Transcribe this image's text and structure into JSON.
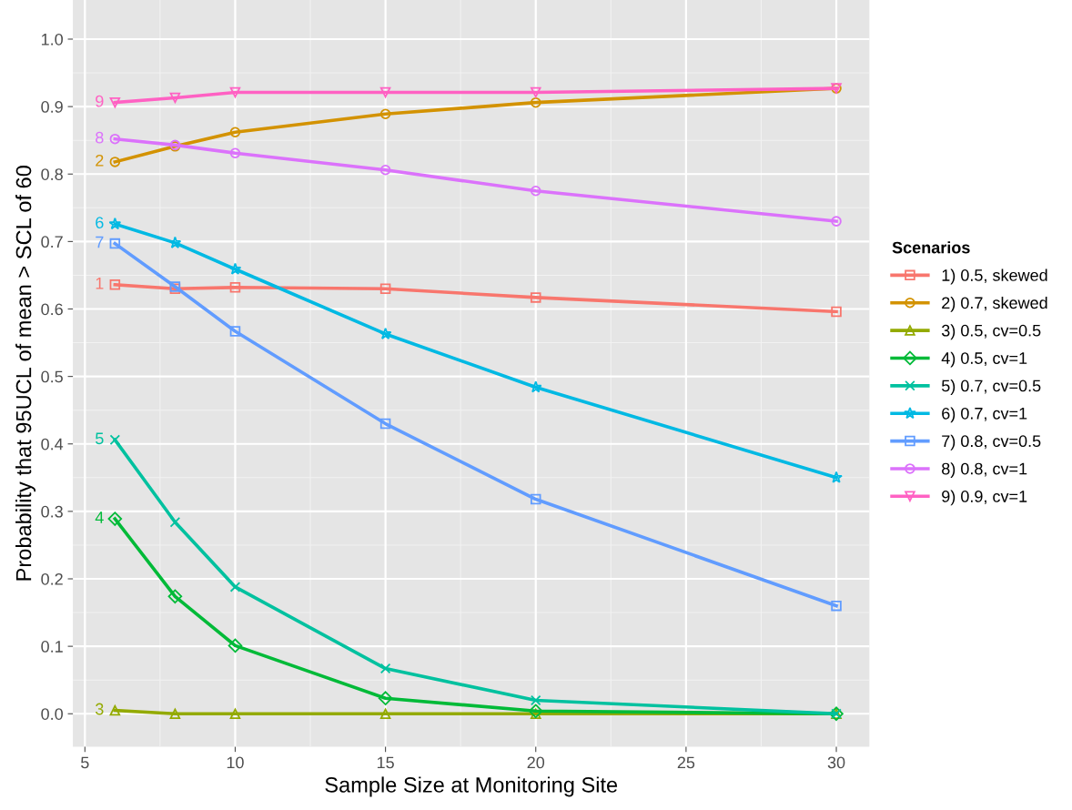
{
  "chart_data": {
    "type": "line",
    "xlabel": "Sample Size at Monitoring Site",
    "ylabel": "Probability that 95UCL of mean > SCL of 60",
    "legend_title": "Scenarios",
    "legend": "right",
    "grid": true,
    "x": [
      6,
      8,
      10,
      15,
      20,
      30
    ],
    "xlim": [
      4.6,
      31.1
    ],
    "xticks": [
      5,
      10,
      15,
      20,
      25,
      30
    ],
    "ylim": [
      -0.049,
      1.058
    ],
    "yticks": [
      {
        "value": 0,
        "label": "0.0"
      },
      0.1,
      0.2,
      0.3,
      0.4,
      0.5,
      0.6,
      0.7,
      0.8,
      0.9,
      {
        "value": 1,
        "label": "1.0"
      }
    ],
    "series": [
      {
        "name": "1) 0.5, skewed",
        "color": "#f8766d",
        "marker": "square",
        "values": [
          0.636,
          0.63,
          0.632,
          0.63,
          0.617,
          0.596
        ]
      },
      {
        "name": "2) 0.7, skewed",
        "color": "#d39200",
        "marker": "circle",
        "values": [
          0.818,
          0.841,
          0.862,
          0.889,
          0.906,
          0.927
        ]
      },
      {
        "name": "3) 0.5, cv=0.5",
        "color": "#93aa00",
        "marker": "triangle",
        "values": [
          0.005,
          0.0,
          0.0,
          0.0,
          0.0,
          0.0
        ]
      },
      {
        "name": "4) 0.5, cv=1",
        "color": "#00ba38",
        "marker": "diamond",
        "values": [
          0.289,
          0.174,
          0.101,
          0.023,
          0.004,
          0.0
        ]
      },
      {
        "name": "5) 0.7, cv=0.5",
        "color": "#00c19f",
        "marker": "cross",
        "values": [
          0.406,
          0.284,
          0.188,
          0.067,
          0.02,
          0.0
        ]
      },
      {
        "name": "6) 0.7, cv=1",
        "color": "#00b9e3",
        "marker": "star",
        "values": [
          0.726,
          0.698,
          0.659,
          0.563,
          0.484,
          0.35
        ]
      },
      {
        "name": "7) 0.8, cv=0.5",
        "color": "#619cff",
        "marker": "square",
        "values": [
          0.697,
          0.633,
          0.567,
          0.43,
          0.318,
          0.16
        ]
      },
      {
        "name": "8) 0.8, cv=1",
        "color": "#db72fb",
        "marker": "circle",
        "values": [
          0.852,
          0.843,
          0.831,
          0.806,
          0.775,
          0.73
        ]
      },
      {
        "name": "9) 0.9, cv=1",
        "color": "#ff61c3",
        "marker": "triangle_down",
        "values": [
          0.906,
          0.913,
          0.921,
          0.921,
          0.921,
          0.927
        ]
      }
    ],
    "annotations": [
      "1",
      "2",
      "3",
      "4",
      "5",
      "6",
      "7",
      "8",
      "9"
    ]
  }
}
